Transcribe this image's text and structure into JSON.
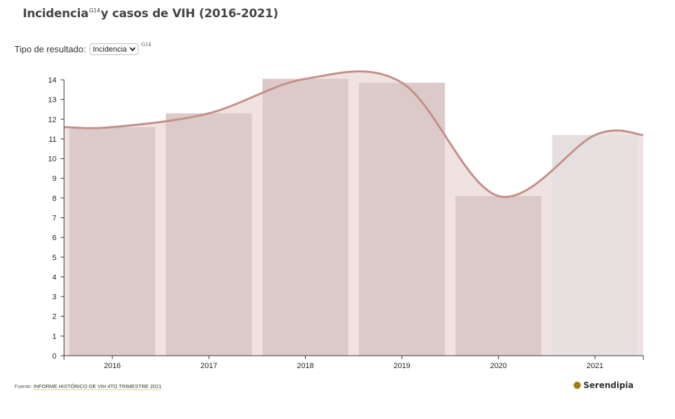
{
  "title": {
    "part1": "Incidencia",
    "ref": "G14",
    "part2": "y casos de VIH (2016-2021)"
  },
  "filter": {
    "label": "Tipo de resultado:",
    "selected": "Incidencia",
    "ref": "G14"
  },
  "chart_data": {
    "type": "bar",
    "title": "Incidencia y casos de VIH (2016-2021)",
    "categories": [
      "2016",
      "2017",
      "2018",
      "2019",
      "2020",
      "2021"
    ],
    "values": [
      11.6,
      12.3,
      14.05,
      13.85,
      8.1,
      11.2
    ],
    "overlay": "smoothed line through the bar values",
    "ylim": [
      0,
      14
    ],
    "yticks": [
      "0",
      "1",
      "2",
      "3",
      "4",
      "5",
      "6",
      "7",
      "8",
      "9",
      "10",
      "11",
      "12",
      "13",
      "14"
    ],
    "xlabel": "",
    "ylabel": "",
    "colors": {
      "bar": "#dcc9ca",
      "bar_last": "#e5dfe0",
      "area": "#f0e2e1",
      "line": "#c49089",
      "axis": "#333333"
    }
  },
  "footer": {
    "source_label": "Fuente:",
    "source_link": "INFORME HISTÓRICO DE VIH 4TO TRIMESTRE 2021"
  },
  "brand": {
    "name": "Serendipia"
  }
}
